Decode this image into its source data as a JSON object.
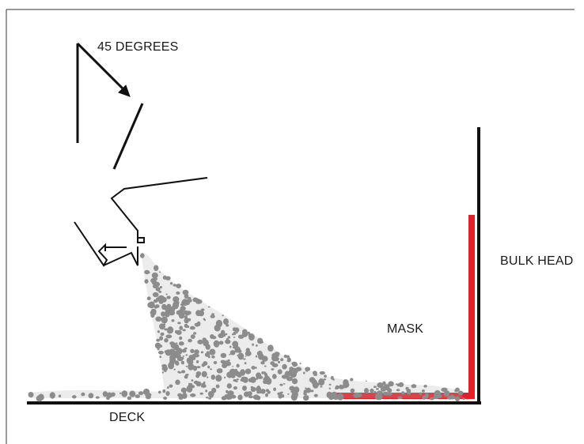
{
  "labels": {
    "angle": "45 DEGREES",
    "mask": "MASK",
    "bulkhead": "BULK HEAD",
    "deck": "DECK"
  },
  "colors": {
    "line": "#111111",
    "mask": "#e3202a",
    "spray": "#8c8c8c",
    "frame": "#333333"
  },
  "icons": {
    "angle_indicator": "angle-arrow-icon",
    "spray_gun": "spray-gun-icon"
  }
}
